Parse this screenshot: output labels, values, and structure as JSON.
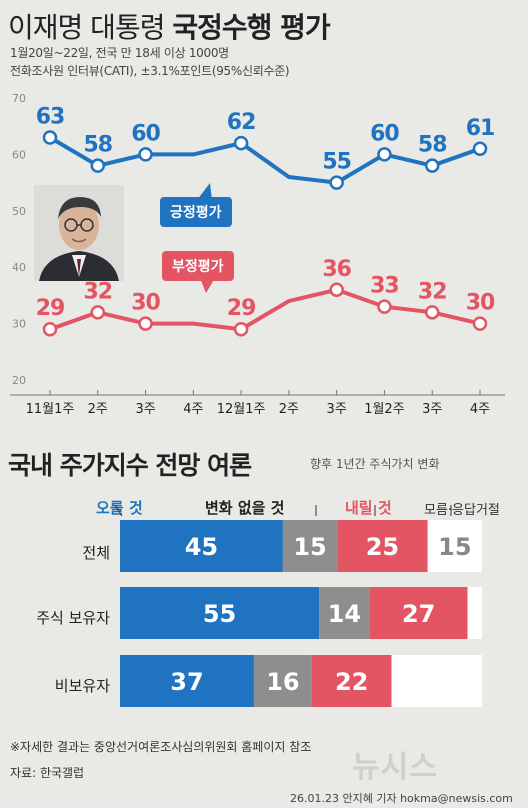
{
  "header": {
    "title_light": "이재명 대통령",
    "title_bold": "국정수행 평가",
    "subtitle1": "1월20일~22일, 전국 만 18세 이상 1000명",
    "subtitle2": "전화조사원 인터뷰(CATI), ±3.1%포인트(95%신뢰수준)"
  },
  "chart_data": [
    {
      "type": "line",
      "x": [
        "11월1주",
        "2주",
        "3주",
        "4주",
        "12월1주",
        "2주",
        "3주",
        "1월2주",
        "3주",
        "4주"
      ],
      "ylim": [
        20,
        70
      ],
      "yticks": [
        20,
        30,
        40,
        50,
        60,
        70
      ],
      "grid": false,
      "series": [
        {
          "name": "긍정평가",
          "color": "#1f73c0",
          "values": [
            63,
            58,
            60,
            60,
            62,
            56,
            55,
            60,
            58,
            61
          ],
          "labels": [
            "63",
            "58",
            "60",
            "",
            "62",
            "",
            "55",
            "60",
            "58",
            "61"
          ]
        },
        {
          "name": "부정평가",
          "color": "#e35562",
          "values": [
            29,
            32,
            30,
            30,
            29,
            34,
            36,
            33,
            32,
            30
          ],
          "labels": [
            "29",
            "32",
            "30",
            "",
            "29",
            "",
            "36",
            "33",
            "32",
            "30"
          ]
        }
      ]
    },
    {
      "type": "bar",
      "orientation": "horizontal",
      "stacked": true,
      "title": "국내 주가지수 전망 여론",
      "note": "향후 1년간 주식가치 변화",
      "categories": [
        "전체",
        "주식 보유자",
        "비보유자"
      ],
      "series": [
        {
          "name": "오를 것",
          "color": "#1f73c0",
          "values": [
            45,
            55,
            37
          ]
        },
        {
          "name": "변화 없을 것",
          "color": "#8e8e8e",
          "values": [
            15,
            14,
            16
          ]
        },
        {
          "name": "내릴 것",
          "color": "#e35562",
          "values": [
            25,
            27,
            22
          ]
        },
        {
          "name": "모름·응답거절",
          "color": "#ffffff",
          "values": [
            15,
            4,
            25
          ]
        }
      ],
      "value_labels": [
        [
          "45",
          "15",
          "25",
          "15"
        ],
        [
          "55",
          "14",
          "27",
          ""
        ],
        [
          "37",
          "16",
          "22",
          ""
        ]
      ]
    }
  ],
  "footer": {
    "note": "※자세한 결과는 중앙선거여론조사심의위원회 홈페이지 참조",
    "source": "자료: 한국갤럽",
    "logo": "뉴시스",
    "credit": "26.01.23 안지혜 기자 hokma@newsis.com"
  },
  "colors": {
    "positive": "#1f73c0",
    "negative": "#e35562",
    "neutral": "#8e8e8e",
    "unknown": "#ffffff",
    "background": "#e9e9e6"
  }
}
